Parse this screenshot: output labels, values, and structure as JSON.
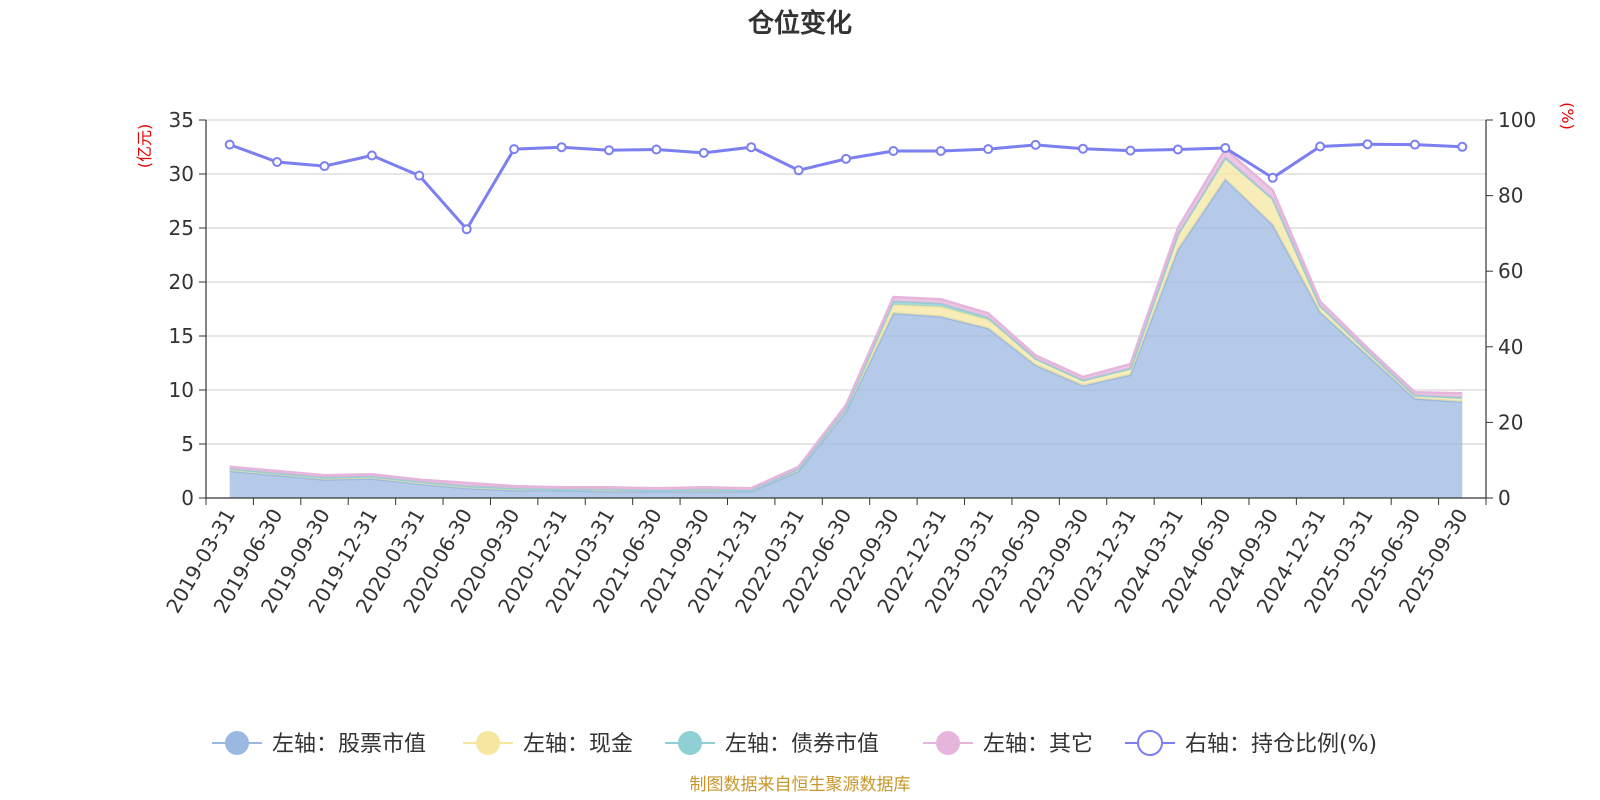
{
  "chart_data": {
    "type": "area",
    "title": "仓位变化",
    "left_unit": "(亿元)",
    "right_unit": "(%)",
    "x": [
      "2019-03-31",
      "2019-06-30",
      "2019-09-30",
      "2019-12-31",
      "2020-03-31",
      "2020-06-30",
      "2020-09-30",
      "2020-12-31",
      "2021-03-31",
      "2021-06-30",
      "2021-09-30",
      "2021-12-31",
      "2022-03-31",
      "2022-06-30",
      "2022-09-30",
      "2022-12-31",
      "2023-03-31",
      "2023-06-30",
      "2023-09-30",
      "2023-12-31",
      "2024-03-31",
      "2024-06-30",
      "2024-09-30",
      "2024-12-31",
      "2025-03-31",
      "2025-06-30",
      "2025-09-30"
    ],
    "left_ylim": [
      0,
      35
    ],
    "left_ticks": [
      "0",
      "5",
      "10",
      "15",
      "20",
      "25",
      "30",
      "35"
    ],
    "right_ylim": [
      0,
      100
    ],
    "right_ticks": [
      "0",
      "20",
      "40",
      "60",
      "80",
      "100"
    ],
    "grid": true,
    "legend_position": "bottom",
    "series": [
      {
        "name": "左轴：股票市值",
        "axis": "left",
        "stack": true,
        "color": "#9bb8e0",
        "values": [
          2.5,
          2.1,
          1.7,
          1.8,
          1.3,
          0.9,
          0.7,
          0.7,
          0.6,
          0.6,
          0.6,
          0.6,
          2.5,
          8.0,
          17.1,
          16.8,
          15.7,
          12.3,
          10.4,
          11.4,
          23.0,
          29.5,
          25.3,
          17.2,
          13.2,
          9.2,
          8.9
        ]
      },
      {
        "name": "左轴：现金",
        "axis": "left",
        "stack": true,
        "color": "#f5e6a0",
        "values": [
          0.2,
          0.2,
          0.2,
          0.2,
          0.2,
          0.2,
          0.2,
          0.1,
          0.2,
          0.1,
          0.2,
          0.1,
          0.2,
          0.3,
          0.8,
          0.9,
          0.8,
          0.6,
          0.5,
          0.6,
          1.4,
          2.0,
          2.4,
          0.6,
          0.4,
          0.3,
          0.4
        ]
      },
      {
        "name": "左轴：债券市值",
        "axis": "left",
        "stack": true,
        "color": "#8fd0d4",
        "values": [
          0,
          0,
          0,
          0,
          0,
          0,
          0,
          0,
          0,
          0,
          0,
          0,
          0,
          0,
          0.3,
          0.3,
          0.2,
          0,
          0,
          0,
          0,
          0,
          0,
          0,
          0,
          0,
          0
        ]
      },
      {
        "name": "左轴：其它",
        "axis": "left",
        "stack": true,
        "color": "#e5b5dc",
        "values": [
          0.2,
          0.2,
          0.2,
          0.2,
          0.2,
          0.3,
          0.2,
          0.2,
          0.2,
          0.2,
          0.2,
          0.2,
          0.2,
          0.3,
          0.4,
          0.4,
          0.4,
          0.3,
          0.3,
          0.4,
          0.6,
          0.8,
          0.8,
          0.4,
          0.3,
          0.3,
          0.4
        ]
      },
      {
        "name": "右轴：持仓比例(%)",
        "axis": "right",
        "type": "line",
        "color": "#7b7ff0",
        "values": [
          93.5,
          88.9,
          87.8,
          90.6,
          85.3,
          71.1,
          92.3,
          92.8,
          92.0,
          92.2,
          91.3,
          92.8,
          86.7,
          89.7,
          91.8,
          91.8,
          92.3,
          93.4,
          92.4,
          91.9,
          92.2,
          92.6,
          84.7,
          93.0,
          93.6,
          93.5,
          92.9
        ]
      }
    ],
    "source": "制图数据来自恒生聚源数据库"
  }
}
